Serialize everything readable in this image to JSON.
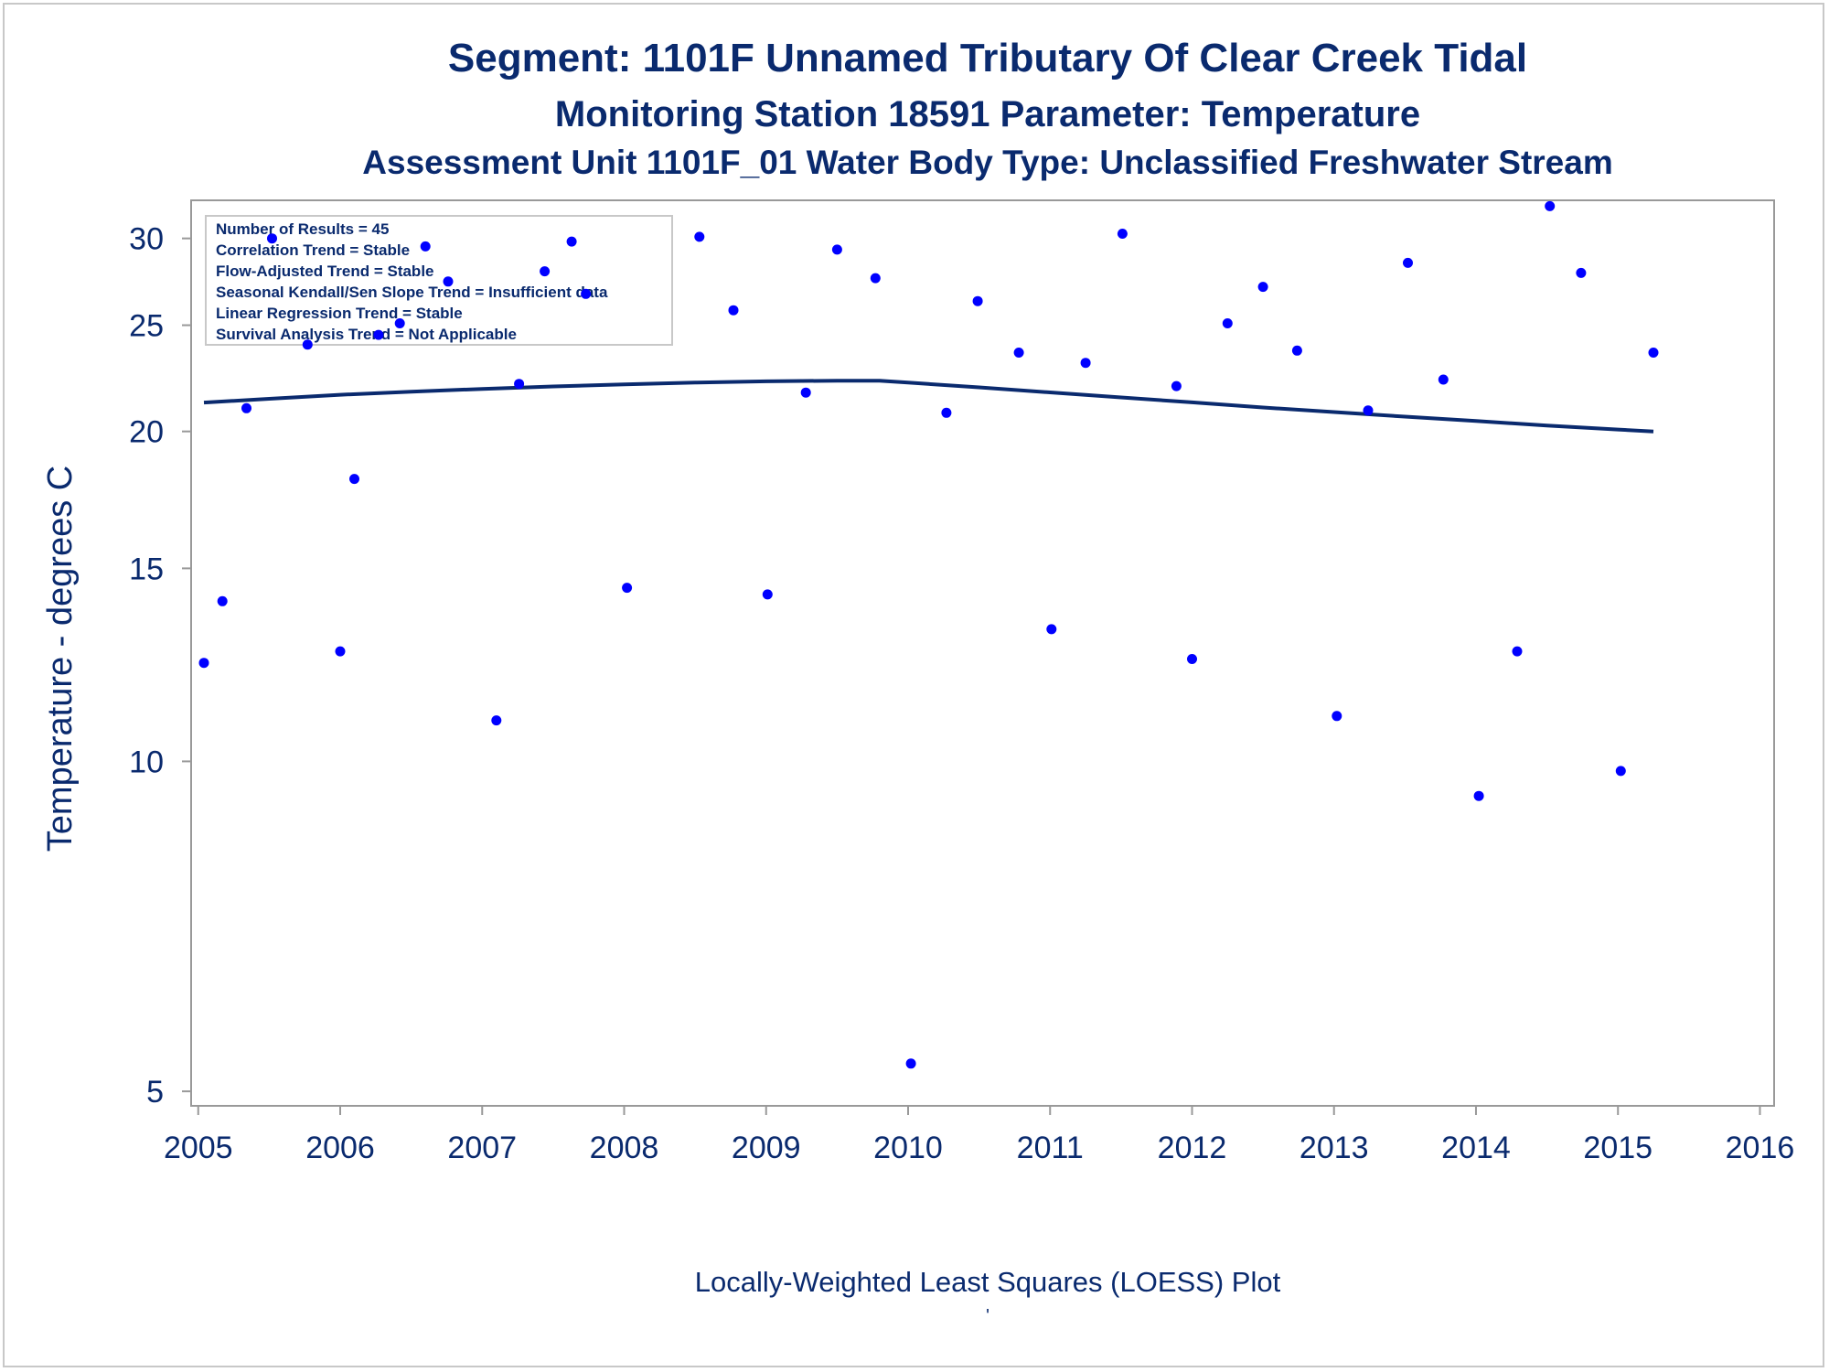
{
  "chart_data": {
    "type": "scatter",
    "title": "Segment: 1101F  Unnamed Tributary Of Clear Creek Tidal",
    "subtitle": "Monitoring Station 18591 Parameter: Temperature",
    "subtitle2": "Assessment Unit 1101F_01   Water Body Type: Unclassified Freshwater Stream",
    "xlabel": "Locally-Weighted Least Squares (LOESS) Plot",
    "ylabel": "Temperature - degrees C",
    "yscale": "log",
    "xlim": [
      2004.95,
      2016.1
    ],
    "ylim": [
      4.85,
      32.5
    ],
    "x_ticks": [
      "2005",
      "2006",
      "2007",
      "2008",
      "2009",
      "2010",
      "2011",
      "2012",
      "2013",
      "2014",
      "2015",
      "2016"
    ],
    "y_ticks": [
      "5",
      "10",
      "15",
      "20",
      "25",
      "30"
    ],
    "grid": false,
    "legend_box": {
      "placement": "top-left",
      "lines": [
        "Number of Results = 45",
        "Correlation Trend = Stable",
        "Flow-Adjusted Trend = Stable",
        "Seasonal Kendall/Sen Slope Trend = Insufficient data",
        "Linear Regression Trend = Stable",
        "Survival Analysis Trend = Not Applicable"
      ]
    },
    "colors": {
      "points": "#0000ff",
      "loess": "#0a2a6e",
      "text": "#0a2a6e",
      "axis": "#999999"
    },
    "series": [
      {
        "type": "scatter",
        "points": [
          [
            2005.04,
            12.3
          ],
          [
            2005.17,
            14.0
          ],
          [
            2005.34,
            21.0
          ],
          [
            2005.52,
            30.0
          ],
          [
            2005.77,
            24.0
          ],
          [
            2006.0,
            12.6
          ],
          [
            2006.1,
            18.1
          ],
          [
            2006.27,
            24.5
          ],
          [
            2006.42,
            25.1
          ],
          [
            2006.6,
            29.5
          ],
          [
            2006.76,
            27.4
          ],
          [
            2007.1,
            10.9
          ],
          [
            2007.26,
            22.1
          ],
          [
            2007.44,
            28.0
          ],
          [
            2007.63,
            29.8
          ],
          [
            2007.73,
            26.7
          ],
          [
            2008.02,
            14.4
          ],
          [
            2008.53,
            30.1
          ],
          [
            2008.77,
            25.8
          ],
          [
            2009.01,
            14.2
          ],
          [
            2009.28,
            21.7
          ],
          [
            2009.5,
            29.3
          ],
          [
            2009.77,
            27.6
          ],
          [
            2010.02,
            5.3
          ],
          [
            2010.27,
            20.8
          ],
          [
            2010.49,
            26.3
          ],
          [
            2010.78,
            23.6
          ],
          [
            2011.01,
            13.2
          ],
          [
            2011.25,
            23.1
          ],
          [
            2011.51,
            30.3
          ],
          [
            2011.89,
            22.0
          ],
          [
            2012.0,
            12.4
          ],
          [
            2012.25,
            25.1
          ],
          [
            2012.5,
            27.1
          ],
          [
            2012.74,
            23.7
          ],
          [
            2013.02,
            11.0
          ],
          [
            2013.24,
            20.9
          ],
          [
            2013.52,
            28.5
          ],
          [
            2013.77,
            22.3
          ],
          [
            2014.02,
            9.3
          ],
          [
            2014.29,
            12.6
          ],
          [
            2014.52,
            32.1
          ],
          [
            2014.74,
            27.9
          ],
          [
            2015.02,
            9.8
          ],
          [
            2015.25,
            23.6
          ]
        ]
      },
      {
        "type": "line",
        "points": [
          [
            2005.04,
            21.25
          ],
          [
            2005.5,
            21.42
          ],
          [
            2006.0,
            21.6
          ],
          [
            2006.5,
            21.74
          ],
          [
            2007.0,
            21.87
          ],
          [
            2007.5,
            21.98
          ],
          [
            2008.0,
            22.08
          ],
          [
            2008.5,
            22.16
          ],
          [
            2009.0,
            22.22
          ],
          [
            2009.5,
            22.25
          ],
          [
            2009.8,
            22.25
          ],
          [
            2010.0,
            22.16
          ],
          [
            2010.5,
            21.94
          ],
          [
            2011.0,
            21.71
          ],
          [
            2011.5,
            21.48
          ],
          [
            2012.0,
            21.26
          ],
          [
            2012.5,
            21.03
          ],
          [
            2013.0,
            20.83
          ],
          [
            2013.5,
            20.63
          ],
          [
            2014.0,
            20.44
          ],
          [
            2014.5,
            20.25
          ],
          [
            2015.0,
            20.08
          ],
          [
            2015.25,
            20.0
          ]
        ]
      }
    ]
  }
}
